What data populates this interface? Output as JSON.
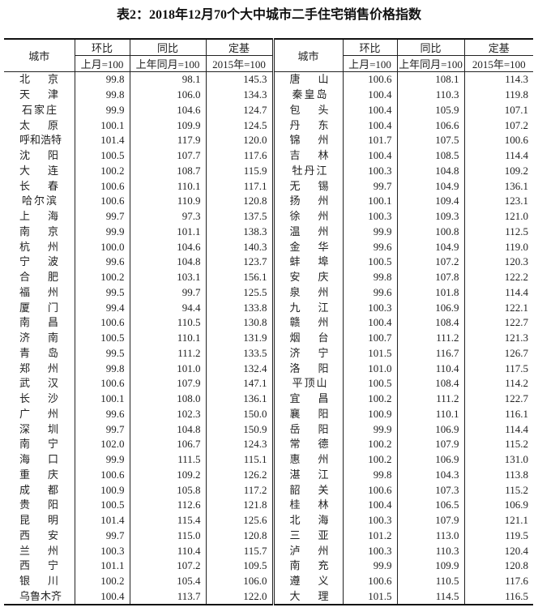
{
  "title": "表2：2018年12月70个大中城市二手住宅销售价格指数",
  "headers": {
    "city": "城市",
    "mom": "环比",
    "mom_base": "上月=100",
    "yoy": "同比",
    "yoy_base": "上年同月=100",
    "fixed": "定基",
    "fixed_base": "2015年=100"
  },
  "left_rows": [
    [
      "北京",
      "99.8",
      "98.1",
      "145.3"
    ],
    [
      "天津",
      "99.8",
      "106.0",
      "134.3"
    ],
    [
      "石家庄",
      "99.9",
      "104.6",
      "124.7"
    ],
    [
      "太原",
      "100.1",
      "109.9",
      "124.5"
    ],
    [
      "呼和浩特",
      "101.4",
      "117.9",
      "120.0"
    ],
    [
      "沈阳",
      "100.5",
      "107.7",
      "117.6"
    ],
    [
      "大连",
      "100.2",
      "108.7",
      "115.9"
    ],
    [
      "长春",
      "100.6",
      "110.1",
      "117.1"
    ],
    [
      "哈尔滨",
      "100.6",
      "110.9",
      "120.8"
    ],
    [
      "上海",
      "99.7",
      "97.3",
      "137.5"
    ],
    [
      "南京",
      "99.9",
      "101.1",
      "138.3"
    ],
    [
      "杭州",
      "100.0",
      "104.6",
      "140.3"
    ],
    [
      "宁波",
      "99.6",
      "104.8",
      "123.7"
    ],
    [
      "合肥",
      "100.2",
      "103.1",
      "156.1"
    ],
    [
      "福州",
      "99.5",
      "99.7",
      "125.5"
    ],
    [
      "厦门",
      "99.4",
      "94.4",
      "133.8"
    ],
    [
      "南昌",
      "100.6",
      "110.5",
      "130.8"
    ],
    [
      "济南",
      "100.5",
      "110.1",
      "131.9"
    ],
    [
      "青岛",
      "99.5",
      "111.2",
      "133.5"
    ],
    [
      "郑州",
      "99.8",
      "101.0",
      "132.4"
    ],
    [
      "武汉",
      "100.6",
      "107.9",
      "147.1"
    ],
    [
      "长沙",
      "100.1",
      "108.0",
      "136.1"
    ],
    [
      "广州",
      "99.6",
      "102.3",
      "150.0"
    ],
    [
      "深圳",
      "99.7",
      "104.8",
      "150.9"
    ],
    [
      "南宁",
      "102.0",
      "106.7",
      "124.3"
    ],
    [
      "海口",
      "99.9",
      "111.5",
      "115.1"
    ],
    [
      "重庆",
      "100.6",
      "109.2",
      "126.2"
    ],
    [
      "成都",
      "100.9",
      "105.8",
      "117.2"
    ],
    [
      "贵阳",
      "100.5",
      "112.6",
      "121.8"
    ],
    [
      "昆明",
      "101.4",
      "115.4",
      "125.6"
    ],
    [
      "西安",
      "99.7",
      "115.0",
      "120.8"
    ],
    [
      "兰州",
      "100.3",
      "110.4",
      "115.7"
    ],
    [
      "西宁",
      "101.1",
      "107.2",
      "109.5"
    ],
    [
      "银川",
      "100.2",
      "105.4",
      "106.0"
    ],
    [
      "乌鲁木齐",
      "100.4",
      "113.7",
      "122.0"
    ]
  ],
  "right_rows": [
    [
      "唐山",
      "100.6",
      "108.1",
      "114.3"
    ],
    [
      "秦皇岛",
      "100.4",
      "110.3",
      "119.8"
    ],
    [
      "包头",
      "100.4",
      "105.9",
      "107.1"
    ],
    [
      "丹东",
      "100.4",
      "106.6",
      "107.2"
    ],
    [
      "锦州",
      "101.7",
      "107.5",
      "100.6"
    ],
    [
      "吉林",
      "100.4",
      "108.5",
      "114.4"
    ],
    [
      "牡丹江",
      "100.3",
      "104.8",
      "109.2"
    ],
    [
      "无锡",
      "99.7",
      "104.9",
      "136.1"
    ],
    [
      "扬州",
      "100.1",
      "109.4",
      "123.1"
    ],
    [
      "徐州",
      "100.3",
      "109.3",
      "121.0"
    ],
    [
      "温州",
      "99.9",
      "100.8",
      "112.5"
    ],
    [
      "金华",
      "99.6",
      "104.9",
      "119.0"
    ],
    [
      "蚌埠",
      "100.5",
      "107.2",
      "120.3"
    ],
    [
      "安庆",
      "99.8",
      "107.8",
      "122.2"
    ],
    [
      "泉州",
      "99.6",
      "101.8",
      "114.4"
    ],
    [
      "九江",
      "100.3",
      "106.9",
      "122.1"
    ],
    [
      "赣州",
      "100.4",
      "108.4",
      "122.7"
    ],
    [
      "烟台",
      "100.7",
      "111.2",
      "121.3"
    ],
    [
      "济宁",
      "101.5",
      "116.7",
      "126.7"
    ],
    [
      "洛阳",
      "101.0",
      "110.4",
      "117.5"
    ],
    [
      "平顶山",
      "100.5",
      "108.4",
      "114.2"
    ],
    [
      "宜昌",
      "100.2",
      "111.2",
      "122.7"
    ],
    [
      "襄阳",
      "100.9",
      "110.1",
      "116.1"
    ],
    [
      "岳阳",
      "99.9",
      "106.9",
      "114.4"
    ],
    [
      "常德",
      "100.2",
      "107.9",
      "115.2"
    ],
    [
      "惠州",
      "100.2",
      "106.9",
      "131.0"
    ],
    [
      "湛江",
      "99.8",
      "104.3",
      "113.8"
    ],
    [
      "韶关",
      "100.6",
      "107.3",
      "115.2"
    ],
    [
      "桂林",
      "100.4",
      "106.5",
      "106.9"
    ],
    [
      "北海",
      "100.3",
      "107.9",
      "121.1"
    ],
    [
      "三亚",
      "101.2",
      "113.0",
      "119.5"
    ],
    [
      "泸州",
      "100.3",
      "110.3",
      "120.4"
    ],
    [
      "南充",
      "99.9",
      "109.9",
      "120.8"
    ],
    [
      "遵义",
      "100.6",
      "110.5",
      "117.6"
    ],
    [
      "大理",
      "101.5",
      "114.5",
      "116.5"
    ]
  ]
}
